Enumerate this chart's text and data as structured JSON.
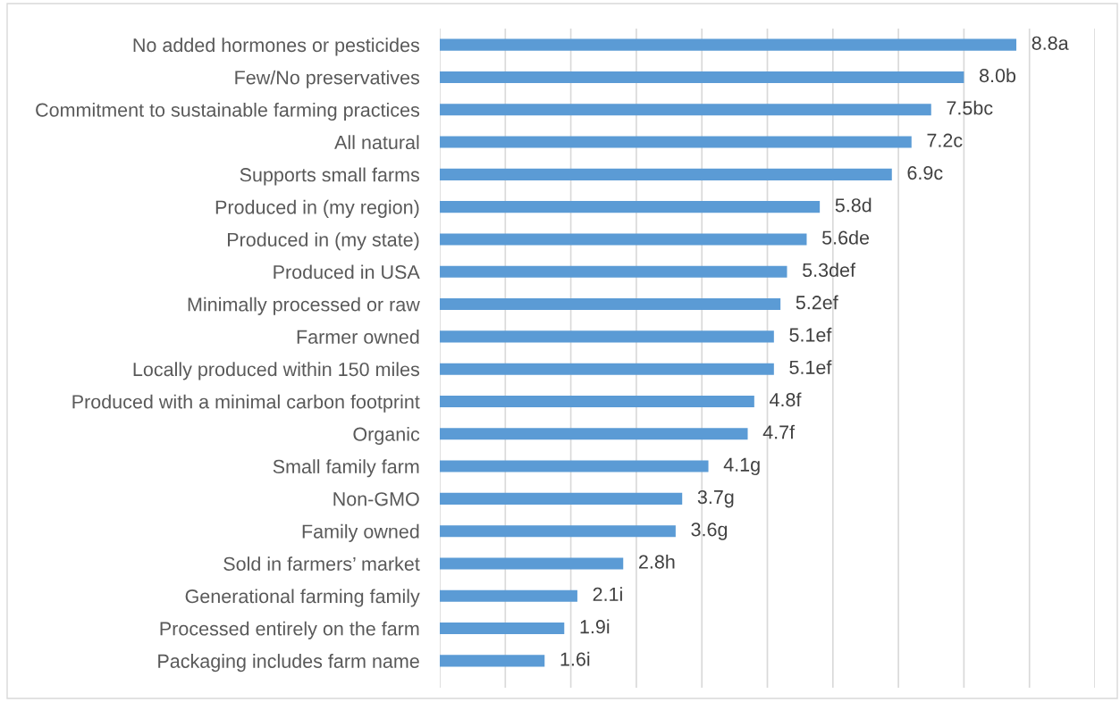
{
  "chart_data": {
    "type": "bar",
    "orientation": "horizontal",
    "categories": [
      "No added hormones or pesticides",
      "Few/No preservatives",
      "Commitment to sustainable farming practices",
      "All natural",
      "Supports small farms",
      "Produced in (my region)",
      "Produced in (my state)",
      "Produced in USA",
      "Minimally processed or raw",
      "Farmer owned",
      "Locally produced within 150 miles",
      "Produced with a minimal carbon footprint",
      "Organic",
      "Small family farm",
      "Non-GMO",
      "Family owned",
      "Sold in farmers’ market",
      "Generational farming family",
      "Processed entirely on the farm",
      "Packaging includes farm name"
    ],
    "values": [
      8.8,
      8.0,
      7.5,
      7.2,
      6.9,
      5.8,
      5.6,
      5.3,
      5.2,
      5.1,
      5.1,
      4.8,
      4.7,
      4.1,
      3.7,
      3.6,
      2.8,
      2.1,
      1.9,
      1.6
    ],
    "value_labels": [
      "8.8a",
      "8.0b",
      "7.5bc",
      "7.2c",
      "6.9c",
      "5.8d",
      "5.6de",
      "5.3def",
      "5.2ef",
      "5.1ef",
      "5.1ef",
      "4.8f",
      "4.7f",
      "4.1g",
      "3.7g",
      "3.6g",
      "2.8h",
      "2.1i",
      "1.9i",
      "1.6i"
    ],
    "color": "#5b9bd5",
    "xlim": [
      0,
      10
    ],
    "xticks": [
      {
        "value": 0,
        "label": null
      },
      {
        "value": 1,
        "label": null
      },
      {
        "value": 2,
        "label": null
      },
      {
        "value": 3,
        "label": null
      },
      {
        "value": 4,
        "label": null
      },
      {
        "value": 5,
        "label": null
      },
      {
        "value": 6,
        "label": null
      },
      {
        "value": 7,
        "label": null
      },
      {
        "value": 8,
        "label": null
      },
      {
        "value": 9,
        "label": null
      },
      {
        "value": 10,
        "label": null
      }
    ],
    "grid": "x",
    "tick_labels": "y",
    "legend": false
  }
}
